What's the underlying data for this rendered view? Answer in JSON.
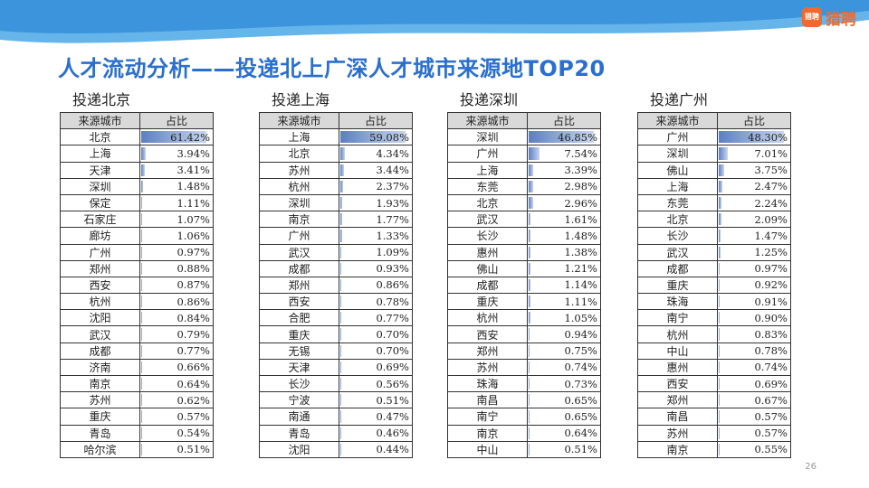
{
  "brand": {
    "badge": "猎聘",
    "name": "猎聘"
  },
  "title": "人才流动分析——投递北上广深人才城市来源地TOP20",
  "columns": {
    "city": "来源城市",
    "share": "占比"
  },
  "page_number": "26",
  "tables": [
    {
      "heading": "投递北京",
      "rows": [
        {
          "city": "北京",
          "share": "61.42%",
          "value": 61.42
        },
        {
          "city": "上海",
          "share": "3.94%",
          "value": 3.94
        },
        {
          "city": "天津",
          "share": "3.41%",
          "value": 3.41
        },
        {
          "city": "深圳",
          "share": "1.48%",
          "value": 1.48
        },
        {
          "city": "保定",
          "share": "1.11%",
          "value": 1.11
        },
        {
          "city": "石家庄",
          "share": "1.07%",
          "value": 1.07
        },
        {
          "city": "廊坊",
          "share": "1.06%",
          "value": 1.06
        },
        {
          "city": "广州",
          "share": "0.97%",
          "value": 0.97
        },
        {
          "city": "郑州",
          "share": "0.88%",
          "value": 0.88
        },
        {
          "city": "西安",
          "share": "0.87%",
          "value": 0.87
        },
        {
          "city": "杭州",
          "share": "0.86%",
          "value": 0.86
        },
        {
          "city": "沈阳",
          "share": "0.84%",
          "value": 0.84
        },
        {
          "city": "武汉",
          "share": "0.79%",
          "value": 0.79
        },
        {
          "city": "成都",
          "share": "0.77%",
          "value": 0.77
        },
        {
          "city": "济南",
          "share": "0.66%",
          "value": 0.66
        },
        {
          "city": "南京",
          "share": "0.64%",
          "value": 0.64
        },
        {
          "city": "苏州",
          "share": "0.62%",
          "value": 0.62
        },
        {
          "city": "重庆",
          "share": "0.57%",
          "value": 0.57
        },
        {
          "city": "青岛",
          "share": "0.54%",
          "value": 0.54
        },
        {
          "city": "哈尔滨",
          "share": "0.51%",
          "value": 0.51
        }
      ]
    },
    {
      "heading": "投递上海",
      "rows": [
        {
          "city": "上海",
          "share": "59.08%",
          "value": 59.08
        },
        {
          "city": "北京",
          "share": "4.34%",
          "value": 4.34
        },
        {
          "city": "苏州",
          "share": "3.44%",
          "value": 3.44
        },
        {
          "city": "杭州",
          "share": "2.37%",
          "value": 2.37
        },
        {
          "city": "深圳",
          "share": "1.93%",
          "value": 1.93
        },
        {
          "city": "南京",
          "share": "1.77%",
          "value": 1.77
        },
        {
          "city": "广州",
          "share": "1.33%",
          "value": 1.33
        },
        {
          "city": "武汉",
          "share": "1.09%",
          "value": 1.09
        },
        {
          "city": "成都",
          "share": "0.93%",
          "value": 0.93
        },
        {
          "city": "郑州",
          "share": "0.86%",
          "value": 0.86
        },
        {
          "city": "西安",
          "share": "0.78%",
          "value": 0.78
        },
        {
          "city": "合肥",
          "share": "0.77%",
          "value": 0.77
        },
        {
          "city": "重庆",
          "share": "0.70%",
          "value": 0.7
        },
        {
          "city": "无锡",
          "share": "0.70%",
          "value": 0.7
        },
        {
          "city": "天津",
          "share": "0.69%",
          "value": 0.69
        },
        {
          "city": "长沙",
          "share": "0.56%",
          "value": 0.56
        },
        {
          "city": "宁波",
          "share": "0.51%",
          "value": 0.51
        },
        {
          "city": "南通",
          "share": "0.47%",
          "value": 0.47
        },
        {
          "city": "青岛",
          "share": "0.46%",
          "value": 0.46
        },
        {
          "city": "沈阳",
          "share": "0.44%",
          "value": 0.44
        }
      ]
    },
    {
      "heading": "投递深圳",
      "rows": [
        {
          "city": "深圳",
          "share": "46.85%",
          "value": 46.85
        },
        {
          "city": "广州",
          "share": "7.54%",
          "value": 7.54
        },
        {
          "city": "上海",
          "share": "3.39%",
          "value": 3.39
        },
        {
          "city": "东莞",
          "share": "2.98%",
          "value": 2.98
        },
        {
          "city": "北京",
          "share": "2.96%",
          "value": 2.96
        },
        {
          "city": "武汉",
          "share": "1.61%",
          "value": 1.61
        },
        {
          "city": "长沙",
          "share": "1.48%",
          "value": 1.48
        },
        {
          "city": "惠州",
          "share": "1.38%",
          "value": 1.38
        },
        {
          "city": "佛山",
          "share": "1.21%",
          "value": 1.21
        },
        {
          "city": "成都",
          "share": "1.14%",
          "value": 1.14
        },
        {
          "city": "重庆",
          "share": "1.11%",
          "value": 1.11
        },
        {
          "city": "杭州",
          "share": "1.05%",
          "value": 1.05
        },
        {
          "city": "西安",
          "share": "0.94%",
          "value": 0.94
        },
        {
          "city": "郑州",
          "share": "0.75%",
          "value": 0.75
        },
        {
          "city": "苏州",
          "share": "0.74%",
          "value": 0.74
        },
        {
          "city": "珠海",
          "share": "0.73%",
          "value": 0.73
        },
        {
          "city": "南昌",
          "share": "0.65%",
          "value": 0.65
        },
        {
          "city": "南宁",
          "share": "0.65%",
          "value": 0.65
        },
        {
          "city": "南京",
          "share": "0.64%",
          "value": 0.64
        },
        {
          "city": "中山",
          "share": "0.51%",
          "value": 0.51
        }
      ]
    },
    {
      "heading": "投递广州",
      "rows": [
        {
          "city": "广州",
          "share": "48.30%",
          "value": 48.3
        },
        {
          "city": "深圳",
          "share": "7.01%",
          "value": 7.01
        },
        {
          "city": "佛山",
          "share": "3.75%",
          "value": 3.75
        },
        {
          "city": "上海",
          "share": "2.47%",
          "value": 2.47
        },
        {
          "city": "东莞",
          "share": "2.24%",
          "value": 2.24
        },
        {
          "city": "北京",
          "share": "2.09%",
          "value": 2.09
        },
        {
          "city": "长沙",
          "share": "1.47%",
          "value": 1.47
        },
        {
          "city": "武汉",
          "share": "1.25%",
          "value": 1.25
        },
        {
          "city": "成都",
          "share": "0.97%",
          "value": 0.97
        },
        {
          "city": "重庆",
          "share": "0.92%",
          "value": 0.92
        },
        {
          "city": "珠海",
          "share": "0.91%",
          "value": 0.91
        },
        {
          "city": "南宁",
          "share": "0.90%",
          "value": 0.9
        },
        {
          "city": "杭州",
          "share": "0.83%",
          "value": 0.83
        },
        {
          "city": "中山",
          "share": "0.78%",
          "value": 0.78
        },
        {
          "city": "惠州",
          "share": "0.74%",
          "value": 0.74
        },
        {
          "city": "西安",
          "share": "0.69%",
          "value": 0.69
        },
        {
          "city": "郑州",
          "share": "0.67%",
          "value": 0.67
        },
        {
          "city": "南昌",
          "share": "0.57%",
          "value": 0.57
        },
        {
          "city": "苏州",
          "share": "0.57%",
          "value": 0.57
        },
        {
          "city": "南京",
          "share": "0.55%",
          "value": 0.55
        }
      ]
    }
  ],
  "colors": {
    "title": "#2a6fd0",
    "bar": "#5b7fc2",
    "header_bg": "#d9d9d9",
    "brand": "#f06a2d",
    "wave": "#4aa8e8"
  }
}
